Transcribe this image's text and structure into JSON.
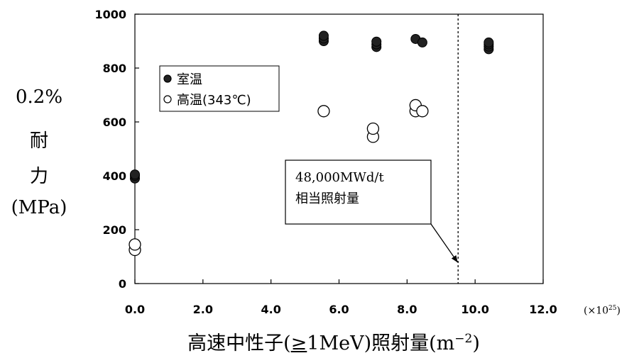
{
  "y_title_lines": [
    "0.2%",
    "耐",
    "力",
    "(MPa)"
  ],
  "x_title": {
    "prefix": "高速中性子(",
    "ge": "≥",
    "middle": "1MeV)照射量(m",
    "exponent": "−2",
    "suffix": ")"
  },
  "x_scale": {
    "text": "(×10",
    "exponent": "25",
    "close": ")"
  },
  "chart_data": {
    "type": "scatter",
    "x_ticks": [
      "0.0",
      "2.0",
      "4.0",
      "6.0",
      "8.0",
      "10.0",
      "12.0"
    ],
    "y_ticks": [
      "0",
      "200",
      "400",
      "600",
      "800",
      "1000"
    ],
    "xlim": [
      0,
      12
    ],
    "ylim": [
      0,
      1000
    ],
    "grid": false,
    "legend_position": "top-left",
    "series": [
      {
        "name": "室温",
        "marker": "filled-circle",
        "color": "#000000",
        "points": [
          [
            0.0,
            390
          ],
          [
            0.0,
            400
          ],
          [
            0.0,
            405
          ],
          [
            5.55,
            900
          ],
          [
            5.55,
            910
          ],
          [
            5.55,
            920
          ],
          [
            7.1,
            878
          ],
          [
            7.1,
            888
          ],
          [
            7.1,
            898
          ],
          [
            8.25,
            908
          ],
          [
            8.45,
            895
          ],
          [
            10.4,
            870
          ],
          [
            10.4,
            880
          ],
          [
            10.4,
            888
          ],
          [
            10.4,
            895
          ]
        ]
      },
      {
        "name": "高温(343℃)",
        "marker": "open-circle",
        "color": "#000000",
        "points": [
          [
            0.0,
            125
          ],
          [
            0.0,
            145
          ],
          [
            5.55,
            640
          ],
          [
            7.0,
            545
          ],
          [
            7.0,
            575
          ],
          [
            8.25,
            640
          ],
          [
            8.25,
            662
          ],
          [
            8.45,
            640
          ]
        ]
      }
    ],
    "reference_line": {
      "x": 9.5,
      "style": "dashed"
    },
    "annotation": {
      "lines": [
        "48,000MWd/t",
        "相当照射量"
      ],
      "arrow_to": [
        9.5,
        80
      ]
    }
  }
}
